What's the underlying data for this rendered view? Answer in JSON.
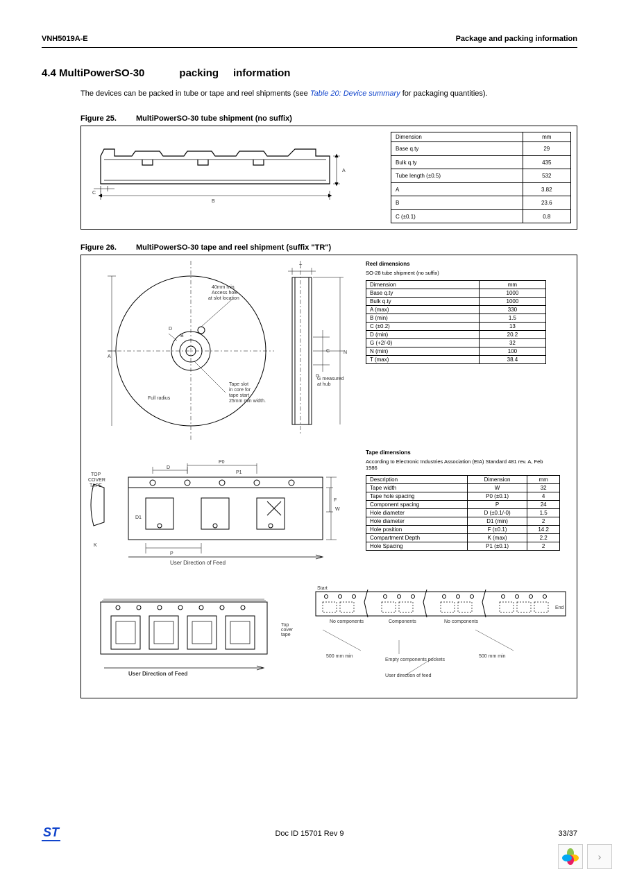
{
  "header": {
    "left": "VNH5019A-E",
    "right": "Package and packing information"
  },
  "section": {
    "number": "4.4",
    "title": "MultiPowerSO-30",
    "title2": "packing",
    "title3": "information"
  },
  "intro": {
    "text1": "The devices can be packed in tube or tape and reel shipments (see ",
    "xref": "Table 20: Device summary",
    "text2": " for packaging quantities)."
  },
  "fig25": {
    "caption_num": "Figure 25.",
    "caption_title": "MultiPowerSO-30 tube shipment (no suffix)",
    "table": {
      "headers": [
        "Dimension",
        "mm"
      ],
      "rows": [
        [
          "Base q.ty",
          "29"
        ],
        [
          "Bulk q.ty",
          "435"
        ],
        [
          "Tube length (±0.5)",
          "532"
        ],
        [
          "A",
          "3.82"
        ],
        [
          "B",
          "23.6"
        ],
        [
          "C (±0.1)",
          "0.8"
        ]
      ]
    },
    "labels": {
      "a": "A",
      "b": "B",
      "c": "C"
    }
  },
  "fig26": {
    "caption_num": "Figure 26.",
    "caption_title": "MultiPowerSO-30 tape and reel shipment (suffix \"TR\")",
    "reel_head": "Reel dimensions",
    "reel_sub": "SO-28 tube shipment (no suffix)",
    "reel_table": {
      "headers": [
        "Dimension",
        "mm"
      ],
      "rows": [
        [
          "Base q.ty",
          "1000"
        ],
        [
          "Bulk q.ty",
          "1000"
        ],
        [
          "A (max)",
          "330"
        ],
        [
          "B (min)",
          "1.5"
        ],
        [
          "C (±0.2)",
          "13"
        ],
        [
          "D (min)",
          "20.2"
        ],
        [
          "G (+2/-0)",
          "32"
        ],
        [
          "N (min)",
          "100"
        ],
        [
          "T (max)",
          "38.4"
        ]
      ]
    },
    "tape_head": "Tape dimensions",
    "tape_note": "According to Electronic Industries Association (EIA) Standard 481 rev. A, Feb 1986",
    "tape_table": {
      "headers": [
        "Description",
        "Dimension",
        "mm"
      ],
      "rows": [
        [
          "Tape width",
          "W",
          "32"
        ],
        [
          "Tape hole spacing",
          "P0 (±0.1)",
          "4"
        ],
        [
          "Component spacing",
          "P",
          "24"
        ],
        [
          "Hole diameter",
          "D (±0.1/-0)",
          "1.5"
        ],
        [
          "Hole diameter",
          "D1 (min)",
          "2"
        ],
        [
          "Hole position",
          "F (±0.1)",
          "14.2"
        ],
        [
          "Compartment Depth",
          "K (max)",
          "2.2"
        ],
        [
          "Hole Spacing",
          "P1 (±0.1)",
          "2"
        ]
      ]
    },
    "annot": {
      "access": "40mm min.\nAccess hole\nat slot location",
      "full_radius": "Full radius",
      "tape_slot": "Tape slot\nin core for\ntape start\n25mm min width.",
      "g_meas": "G measured\nat hub",
      "top_cover": "TOP\nCOVER\nTAPE",
      "user_feed": "User Direction of Feed",
      "user_feed2": "User Direction of Feed",
      "start": "Start",
      "end": "End",
      "nocomp": "No components",
      "comp": "Components",
      "empty_pockets": "Empty components pockets",
      "user_dir": "User direction of feed",
      "d500a": "500 mm min",
      "d500b": "500 mm min",
      "top_cover2": "Top\ncover\ntape",
      "dims": {
        "a": "A",
        "b": "B",
        "c": "C",
        "d": "D",
        "g": "G",
        "n": "N",
        "t": "T",
        "p": "P",
        "p0": "P0",
        "p1": "P1",
        "f": "F",
        "w": "W",
        "k": "K",
        "d1": "D1"
      }
    }
  },
  "footer": {
    "docid": "Doc ID 15701 Rev 9",
    "page": "33/37"
  },
  "colors": {
    "link": "#1044cc",
    "line": "#000000",
    "logo": "#1044cc"
  }
}
